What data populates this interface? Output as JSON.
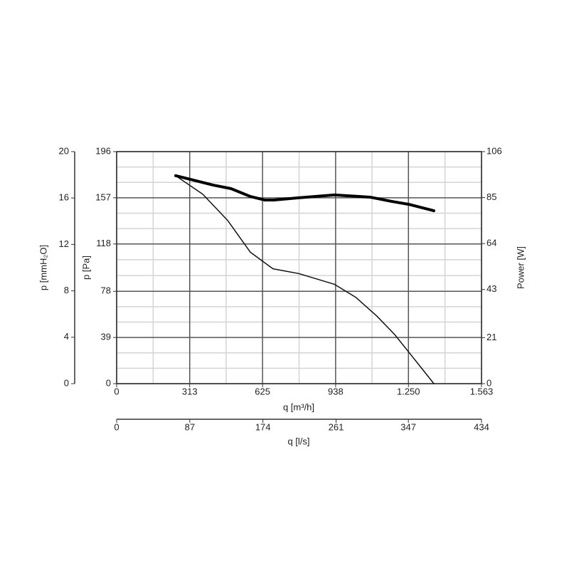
{
  "chart_data": {
    "type": "line",
    "xlabel": "q [m³/h]",
    "xlim": [
      0,
      1563
    ],
    "xticks": [
      0,
      313,
      625,
      938,
      {
        "value": 1250,
        "label": "1.250"
      },
      {
        "value": 1563,
        "label": "1.563"
      }
    ],
    "x2label": "q [l/s]",
    "x2lim": [
      0,
      434
    ],
    "x2ticks": [
      0,
      87,
      174,
      261,
      347,
      434
    ],
    "ylabel": "p [Pa]",
    "ylim": [
      0,
      196
    ],
    "yticks": [
      0,
      39,
      78,
      118,
      157,
      196
    ],
    "y_outer_label": "p [mmH₂O]",
    "y_outer_lim": [
      0,
      20
    ],
    "y_outer_ticks": [
      0,
      4,
      8,
      12,
      16,
      20
    ],
    "y2label": "Power [W]",
    "y2lim": [
      0,
      106
    ],
    "y2ticks": [
      0,
      21,
      43,
      64,
      85,
      106
    ],
    "grid": true,
    "minor_grid": true,
    "series": [
      {
        "axis": "y",
        "color": "#111111",
        "width": 1.5,
        "x": [
          253,
          369,
          475,
          573,
          670,
          780,
          932,
          1024,
          1115,
          1191,
          1252,
          1359
        ],
        "values": [
          175.6,
          160,
          138,
          111,
          97,
          93,
          84,
          73,
          57,
          41.5,
          26.5,
          0
        ]
      },
      {
        "axis": "y2",
        "color": "#000000",
        "width": 4,
        "x": [
          253,
          414,
          490,
          573,
          634,
          673,
          780,
          932,
          1085,
          1176,
          1252,
          1359
        ],
        "values": [
          95,
          90.7,
          89.1,
          85.5,
          83.9,
          83.9,
          84.9,
          86.2,
          85.2,
          83.3,
          81.9,
          79.0
        ]
      }
    ]
  }
}
